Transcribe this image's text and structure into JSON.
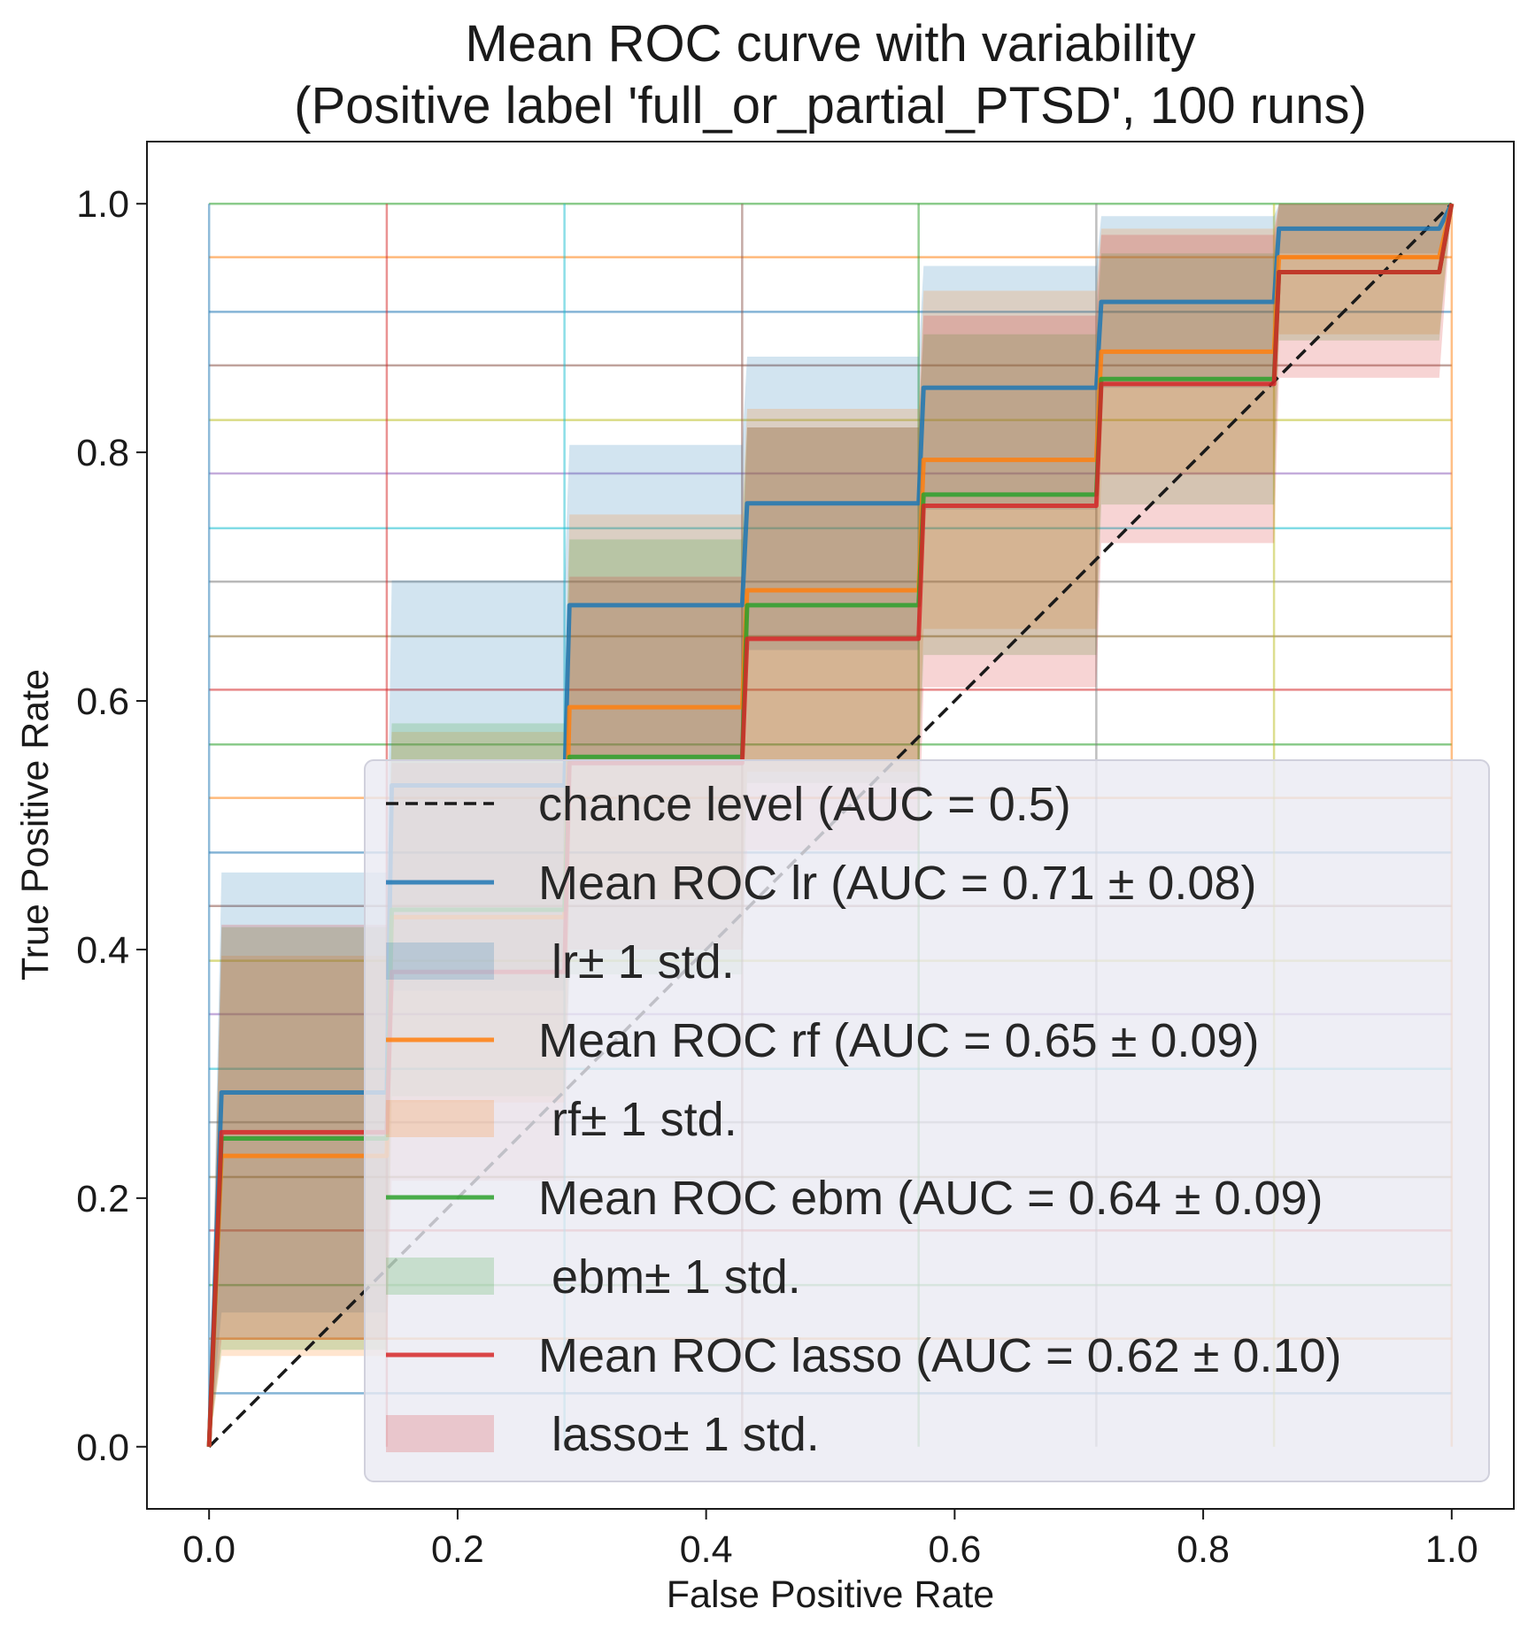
{
  "chart_data": {
    "type": "line",
    "title": "Mean ROC curve with variability\n(Positive label 'full_or_partial_PTSD', 100 runs)",
    "title_lines": [
      "Mean ROC curve with variability",
      "(Positive label 'full_or_partial_PTSD', 100 runs)"
    ],
    "xlabel": "False Positive Rate",
    "ylabel": "True Positive Rate",
    "xlim": [
      -0.05,
      1.05
    ],
    "ylim": [
      -0.05,
      1.05
    ],
    "xticks": [
      0.0,
      0.2,
      0.4,
      0.6,
      0.8,
      1.0
    ],
    "yticks": [
      0.0,
      0.2,
      0.4,
      0.6,
      0.8,
      1.0
    ],
    "xtick_labels": [
      "0.0",
      "0.2",
      "0.4",
      "0.6",
      "0.8",
      "1.0"
    ],
    "ytick_labels": [
      "0.0",
      "0.2",
      "0.4",
      "0.6",
      "0.8",
      "1.0"
    ],
    "grid": false,
    "legend_position": "lower-right",
    "chance_level": {
      "name": "chance level (AUC = 0.5)",
      "x": [
        0,
        1
      ],
      "y": [
        0,
        1
      ],
      "color": "#1a1a1a",
      "style": "dashed"
    },
    "series": [
      {
        "name": "Mean ROC lr (AUC = 0.71 ± 0.08)",
        "band_name": " lr± 1 std.",
        "color": "#1f77b4",
        "x": [
          0,
          0.01,
          0.143,
          0.147,
          0.286,
          0.29,
          0.429,
          0.433,
          0.571,
          0.575,
          0.714,
          0.718,
          0.857,
          0.861,
          0.99,
          1.0
        ],
        "y": [
          0,
          0.285,
          0.285,
          0.532,
          0.532,
          0.677,
          0.677,
          0.759,
          0.759,
          0.852,
          0.852,
          0.921,
          0.921,
          0.98,
          0.98,
          1.0
        ],
        "upper": [
          0,
          0.462,
          0.462,
          0.697,
          0.697,
          0.806,
          0.806,
          0.877,
          0.877,
          0.95,
          0.95,
          0.99,
          0.99,
          1.0,
          1.0,
          1.0
        ],
        "lower": [
          0,
          0.108,
          0.108,
          0.367,
          0.367,
          0.548,
          0.548,
          0.641,
          0.641,
          0.754,
          0.754,
          0.852,
          0.852,
          0.96,
          0.96,
          1.0
        ]
      },
      {
        "name": "Mean ROC rf (AUC = 0.65 ± 0.09)",
        "band_name": " rf± 1 std.",
        "color": "#ff7f0e",
        "x": [
          0,
          0.01,
          0.143,
          0.147,
          0.286,
          0.29,
          0.429,
          0.433,
          0.571,
          0.575,
          0.714,
          0.718,
          0.857,
          0.861,
          0.99,
          1.0
        ],
        "y": [
          0,
          0.234,
          0.234,
          0.426,
          0.426,
          0.595,
          0.595,
          0.689,
          0.689,
          0.794,
          0.794,
          0.881,
          0.881,
          0.957,
          0.957,
          1.0
        ],
        "upper": [
          0,
          0.395,
          0.395,
          0.575,
          0.575,
          0.75,
          0.75,
          0.835,
          0.835,
          0.93,
          0.93,
          0.98,
          0.98,
          1.0,
          1.0,
          1.0
        ],
        "lower": [
          0,
          0.073,
          0.073,
          0.277,
          0.277,
          0.44,
          0.44,
          0.543,
          0.543,
          0.658,
          0.658,
          0.782,
          0.782,
          0.895,
          0.895,
          1.0
        ]
      },
      {
        "name": "Mean ROC ebm (AUC = 0.64 ± 0.09)",
        "band_name": " ebm± 1 std.",
        "color": "#2ca02c",
        "x": [
          0,
          0.01,
          0.143,
          0.147,
          0.286,
          0.29,
          0.429,
          0.433,
          0.571,
          0.575,
          0.714,
          0.718,
          0.857,
          0.861,
          0.99,
          1.0
        ],
        "y": [
          0,
          0.248,
          0.248,
          0.432,
          0.432,
          0.555,
          0.555,
          0.677,
          0.677,
          0.766,
          0.766,
          0.859,
          0.859,
          0.945,
          0.945,
          1.0
        ],
        "upper": [
          0,
          0.418,
          0.418,
          0.582,
          0.582,
          0.73,
          0.73,
          0.82,
          0.82,
          0.895,
          0.895,
          0.96,
          0.96,
          1.0,
          1.0,
          1.0
        ],
        "lower": [
          0,
          0.078,
          0.078,
          0.282,
          0.282,
          0.38,
          0.38,
          0.534,
          0.534,
          0.637,
          0.637,
          0.758,
          0.758,
          0.89,
          0.89,
          1.0
        ]
      },
      {
        "name": "Mean ROC lasso (AUC = 0.62 ± 0.10)",
        "band_name": " lasso± 1 std.",
        "color": "#d62728",
        "x": [
          0,
          0.01,
          0.143,
          0.147,
          0.286,
          0.29,
          0.429,
          0.433,
          0.571,
          0.575,
          0.714,
          0.718,
          0.857,
          0.861,
          0.99,
          1.0
        ],
        "y": [
          0,
          0.253,
          0.253,
          0.382,
          0.382,
          0.55,
          0.55,
          0.65,
          0.65,
          0.757,
          0.757,
          0.855,
          0.855,
          0.945,
          0.945,
          1.0
        ],
        "upper": [
          0,
          0.42,
          0.42,
          0.55,
          0.55,
          0.7,
          0.7,
          0.82,
          0.82,
          0.91,
          0.91,
          0.975,
          0.975,
          1.0,
          1.0,
          1.0
        ],
        "lower": [
          0,
          0.086,
          0.086,
          0.214,
          0.214,
          0.4,
          0.4,
          0.48,
          0.48,
          0.611,
          0.611,
          0.727,
          0.727,
          0.86,
          0.86,
          1.0
        ]
      }
    ],
    "individual_runs": {
      "count": 100,
      "x": [
        0,
        0.143,
        0.286,
        0.429,
        0.571,
        0.714,
        0.857,
        1.0
      ],
      "lines_tpr": [
        0.043,
        0.087,
        0.13,
        0.174,
        0.217,
        0.261,
        0.304,
        0.348,
        0.391,
        0.435,
        0.478,
        0.522,
        0.565,
        0.609,
        0.652,
        0.696,
        0.739,
        0.783,
        0.826,
        0.87,
        0.913,
        0.957,
        1.0
      ]
    }
  }
}
